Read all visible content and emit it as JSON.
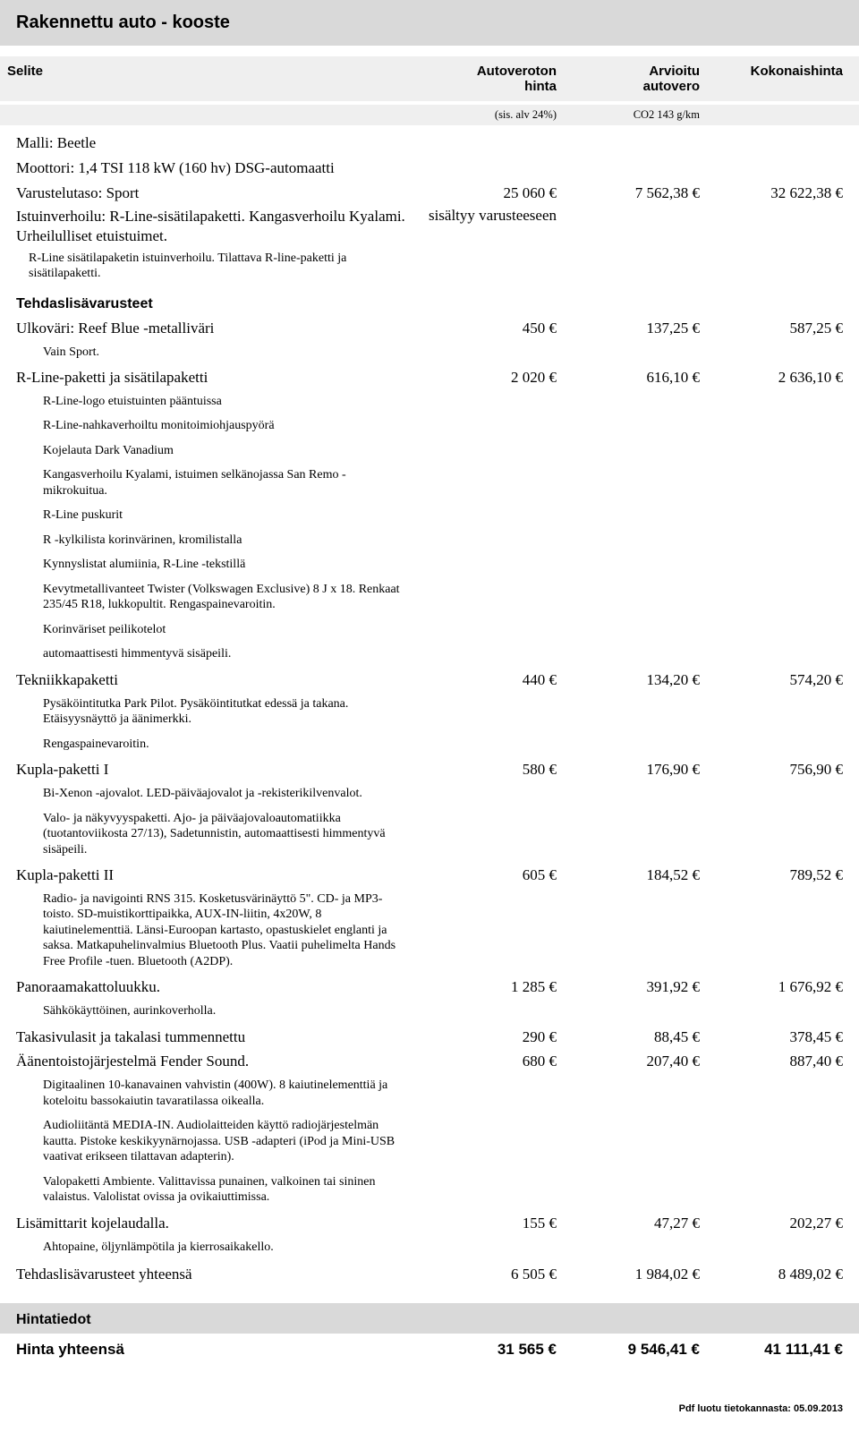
{
  "title": "Rakennettu auto - kooste",
  "headers": {
    "col0": "Selite",
    "col1": "Autoveroton hinta",
    "col2": "Arvioitu autovero",
    "col3": "Kokonaishinta",
    "sub1": "(sis. alv 24%)",
    "sub2": "CO2 143 g/km"
  },
  "base": {
    "model": "Malli: Beetle",
    "engine": "Moottori: 1,4 TSI 118 kW (160 hv) DSG-automaatti",
    "trim_label": "Varustelutaso: Sport",
    "trim_c1": "25 060 €",
    "trim_c2": "7 562,38 €",
    "trim_c3": "32 622,38 €",
    "upholstery_label": "Istuinverhoilu: R-Line-sisätilapaketti. Kangasverhoilu Kyalami. Urheilulliset etuistuimet.",
    "upholstery_c1": "sisältyy varusteeseen",
    "upholstery_note": "R-Line sisätilapaketin istuinverhoilu. Tilattava R-line-paketti ja sisätilapaketti."
  },
  "options_heading": "Tehdaslisävarusteet",
  "options": [
    {
      "label": "Ulkoväri: Reef Blue -metalliväri",
      "c1": "450 €",
      "c2": "137,25 €",
      "c3": "587,25 €",
      "notes": [
        "Vain Sport."
      ]
    },
    {
      "label": "R-Line-paketti ja sisätilapaketti",
      "c1": "2 020 €",
      "c2": "616,10 €",
      "c3": "2 636,10 €",
      "notes": [
        "R-Line-logo etuistuinten pääntuissa",
        "R-Line-nahkaverhoiltu monitoimiohjauspyörä",
        "Kojelauta Dark Vanadium",
        "Kangasverhoilu Kyalami, istuimen selkänojassa San Remo -mikrokuitua.",
        "R-Line puskurit",
        "R -kylkilista korinvärinen, kromilistalla",
        "Kynnyslistat alumiinia, R-Line -tekstillä",
        "Kevytmetallivanteet Twister (Volkswagen Exclusive) 8 J x 18. Renkaat 235/45 R18, lukkopultit. Rengaspainevaroitin.",
        "Korinväriset peilikotelot",
        "automaattisesti himmentyvä sisäpeili."
      ]
    },
    {
      "label": "Tekniikkapaketti",
      "c1": "440 €",
      "c2": "134,20 €",
      "c3": "574,20 €",
      "notes": [
        "Pysäköintitutka Park Pilot. Pysäköintitutkat edessä ja takana. Etäisyysnäyttö ja äänimerkki.",
        "Rengaspainevaroitin."
      ]
    },
    {
      "label": "Kupla-paketti I",
      "c1": "580 €",
      "c2": "176,90 €",
      "c3": "756,90 €",
      "notes": [
        "Bi-Xenon -ajovalot. LED-päiväajovalot ja -rekisterikilvenvalot.",
        "Valo- ja näkyvyyspaketti. Ajo- ja päiväajovaloautomatiikka (tuotantoviikosta 27/13),  Sadetunnistin, automaattisesti himmentyvä sisäpeili."
      ]
    },
    {
      "label": "Kupla-paketti II",
      "c1": "605 €",
      "c2": "184,52 €",
      "c3": "789,52 €",
      "notes": [
        "Radio- ja navigointi RNS 315. Kosketusvärinäyttö 5\". CD- ja MP3-toisto. SD-muistikorttipaikka, AUX-IN-liitin, 4x20W, 8 kaiutinelementtiä. Länsi-Euroopan kartasto, opastuskielet englanti ja saksa. Matkapuhelinvalmius Bluetooth Plus. Vaatii puhelimelta Hands Free Profile -tuen. Bluetooth (A2DP)."
      ]
    },
    {
      "label": "Panoraamakattoluukku.",
      "c1": "1 285 €",
      "c2": "391,92 €",
      "c3": "1 676,92 €",
      "notes": [
        "Sähkökäyttöinen, aurinkoverholla."
      ]
    },
    {
      "label": "Takasivulasit ja takalasi tummennettu",
      "c1": "290 €",
      "c2": "88,45 €",
      "c3": "378,45 €",
      "notes": []
    },
    {
      "label": "Äänentoistojärjestelmä Fender Sound.",
      "c1": "680 €",
      "c2": "207,40 €",
      "c3": "887,40 €",
      "notes": [
        "Digitaalinen 10-kanavainen vahvistin (400W). 8 kaiutinelementtiä ja koteloitu bassokaiutin tavaratilassa oikealla.",
        "Audioliitäntä MEDIA-IN. Audiolaitteiden käyttö radiojärjestelmän kautta. Pistoke keskikyynärnojassa. USB -adapteri (iPod ja Mini-USB vaativat erikseen tilattavan adapterin).",
        "Valopaketti Ambiente. Valittavissa punainen, valkoinen tai sininen valaistus. Valolistat ovissa ja ovikaiuttimissa."
      ]
    },
    {
      "label": "Lisämittarit kojelaudalla.",
      "c1": "155 €",
      "c2": "47,27 €",
      "c3": "202,27 €",
      "notes": [
        "Ahtopaine, öljynlämpötila ja kierrosaikakello."
      ]
    }
  ],
  "options_total": {
    "label": "Tehdaslisävarusteet yhteensä",
    "c1": "6 505 €",
    "c2": "1 984,02 €",
    "c3": "8 489,02 €"
  },
  "price_info_heading": "Hintatiedot",
  "grand_total": {
    "label": "Hinta yhteensä",
    "c1": "31 565 €",
    "c2": "9 546,41 €",
    "c3": "41 111,41 €"
  },
  "footer": "Pdf luotu tietokannasta: 05.09.2013"
}
